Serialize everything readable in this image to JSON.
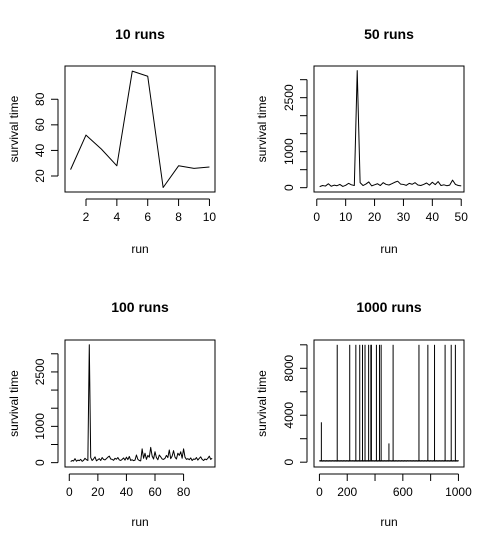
{
  "figure": {
    "background": "#ffffff",
    "line_color": "#000000"
  },
  "chart_data": [
    {
      "type": "line",
      "title": "10 runs",
      "xlabel": "run",
      "ylabel": "survival time",
      "xlim": [
        0.64,
        10.36
      ],
      "ylim": [
        7.5,
        106
      ],
      "xticks": [
        2,
        4,
        6,
        8,
        10
      ],
      "yticks": [
        20,
        40,
        60,
        80
      ],
      "x": [
        1,
        2,
        3,
        4,
        5,
        6,
        7,
        8,
        9,
        10
      ],
      "values": [
        25,
        52,
        41,
        28,
        102,
        98,
        11,
        28,
        26,
        27
      ]
    },
    {
      "type": "line",
      "title": "50 runs",
      "xlabel": "run",
      "ylabel": "survival time",
      "xlim": [
        -0.96,
        50.96
      ],
      "ylim": [
        -120,
        3380
      ],
      "xticks": [
        0,
        10,
        20,
        30,
        40,
        50
      ],
      "yticks": [
        0,
        1000,
        2500
      ],
      "yticks_minor": [
        500,
        1500,
        2000,
        3000
      ],
      "x": [
        1,
        2,
        3,
        4,
        5,
        6,
        7,
        8,
        9,
        10,
        11,
        12,
        13,
        14,
        15,
        16,
        17,
        18,
        19,
        20,
        21,
        22,
        23,
        24,
        25,
        26,
        27,
        28,
        29,
        30,
        31,
        32,
        33,
        34,
        35,
        36,
        37,
        38,
        39,
        40,
        41,
        42,
        43,
        44,
        45,
        46,
        47,
        48,
        49,
        50
      ],
      "values": [
        30,
        60,
        45,
        110,
        40,
        70,
        55,
        90,
        35,
        65,
        120,
        80,
        60,
        3250,
        140,
        60,
        100,
        160,
        50,
        80,
        110,
        60,
        140,
        90,
        75,
        110,
        150,
        180,
        100,
        90,
        65,
        120,
        95,
        140,
        75,
        60,
        90,
        130,
        70,
        150,
        85,
        170,
        60,
        80,
        55,
        70,
        210,
        90,
        60,
        50
      ]
    },
    {
      "type": "line",
      "title": "100 runs",
      "xlabel": "run",
      "ylabel": "survival time",
      "xlim": [
        -3,
        102
      ],
      "ylim": [
        -120,
        3380
      ],
      "xticks": [
        0,
        20,
        40,
        60,
        80
      ],
      "yticks": [
        0,
        1000,
        2500
      ],
      "yticks_minor": [
        500,
        1500,
        2000,
        3000
      ],
      "x": [
        1,
        2,
        3,
        4,
        5,
        6,
        7,
        8,
        9,
        10,
        11,
        12,
        13,
        14,
        15,
        16,
        17,
        18,
        19,
        20,
        21,
        22,
        23,
        24,
        25,
        26,
        27,
        28,
        29,
        30,
        31,
        32,
        33,
        34,
        35,
        36,
        37,
        38,
        39,
        40,
        41,
        42,
        43,
        44,
        45,
        46,
        47,
        48,
        49,
        50,
        51,
        52,
        53,
        54,
        55,
        56,
        57,
        58,
        59,
        60,
        61,
        62,
        63,
        64,
        65,
        66,
        67,
        68,
        69,
        70,
        71,
        72,
        73,
        74,
        75,
        76,
        77,
        78,
        79,
        80,
        81,
        82,
        83,
        84,
        85,
        86,
        87,
        88,
        89,
        90,
        91,
        92,
        93,
        94,
        95,
        96,
        97,
        98,
        99,
        100
      ],
      "values": [
        30,
        60,
        45,
        110,
        40,
        70,
        55,
        90,
        35,
        65,
        120,
        80,
        60,
        3250,
        140,
        60,
        100,
        160,
        50,
        80,
        110,
        60,
        140,
        90,
        75,
        110,
        150,
        180,
        100,
        90,
        65,
        120,
        95,
        140,
        75,
        60,
        90,
        130,
        70,
        150,
        85,
        170,
        60,
        80,
        55,
        70,
        210,
        90,
        60,
        50,
        380,
        120,
        260,
        90,
        200,
        150,
        420,
        180,
        100,
        300,
        140,
        80,
        210,
        160,
        100,
        90,
        120,
        200,
        140,
        350,
        110,
        180,
        330,
        150,
        100,
        260,
        200,
        300,
        120,
        380,
        150,
        90,
        110,
        80,
        130,
        60,
        100,
        90,
        140,
        70,
        120,
        160,
        90,
        60,
        100,
        80,
        120,
        180,
        90,
        120
      ]
    },
    {
      "type": "line",
      "title": "1000 runs",
      "xlabel": "run",
      "ylabel": "survival time",
      "xlim": [
        -39,
        1040
      ],
      "ylim": [
        -410,
        10410
      ],
      "xticks": [
        0,
        200,
        600,
        1000
      ],
      "xticks_minor": [
        400,
        800
      ],
      "yticks": [
        0,
        4000,
        8000
      ],
      "yticks_minor": [
        2000,
        6000,
        10000
      ],
      "baseline_values": [
        60,
        160
      ],
      "spikes": [
        {
          "x": 14,
          "value": 3400
        },
        {
          "x": 128,
          "value": 10000
        },
        {
          "x": 218,
          "value": 10000
        },
        {
          "x": 262,
          "value": 10000
        },
        {
          "x": 290,
          "value": 10000
        },
        {
          "x": 310,
          "value": 10000
        },
        {
          "x": 328,
          "value": 10000
        },
        {
          "x": 354,
          "value": 10000
        },
        {
          "x": 370,
          "value": 10000
        },
        {
          "x": 374,
          "value": 10000
        },
        {
          "x": 410,
          "value": 10000
        },
        {
          "x": 432,
          "value": 10000
        },
        {
          "x": 444,
          "value": 10000
        },
        {
          "x": 500,
          "value": 1600
        },
        {
          "x": 530,
          "value": 10000
        },
        {
          "x": 716,
          "value": 10000
        },
        {
          "x": 780,
          "value": 10000
        },
        {
          "x": 828,
          "value": 10000
        },
        {
          "x": 904,
          "value": 10000
        },
        {
          "x": 948,
          "value": 10000
        },
        {
          "x": 978,
          "value": 10000
        }
      ]
    }
  ]
}
